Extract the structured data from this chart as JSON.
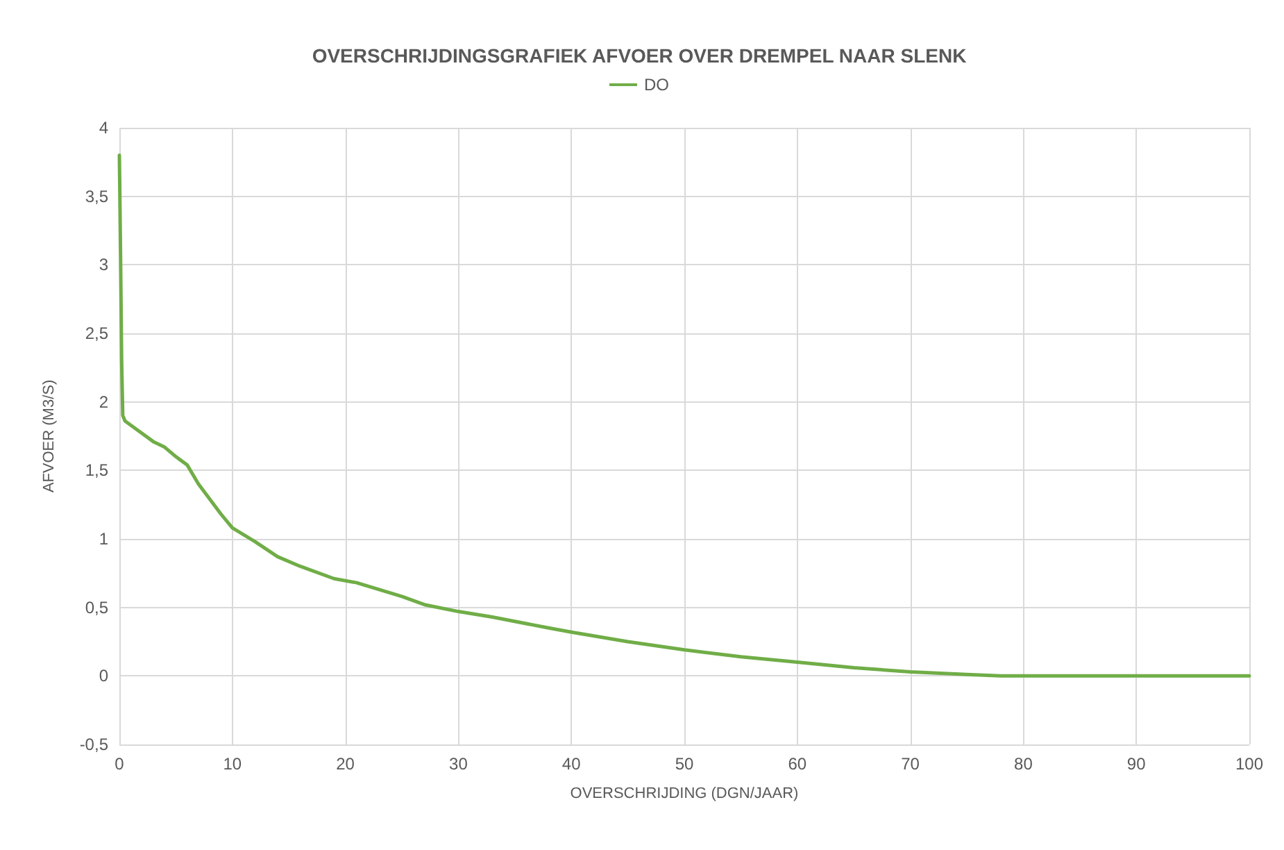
{
  "chart_data": {
    "type": "line",
    "title": "OVERSCHRIJDINGSGRAFIEK AFVOER OVER DREMPEL NAAR SLENK",
    "xlabel": "OVERSCHRIJDING (DGN/JAAR)",
    "ylabel": "AFVOER (M3/S)",
    "x": [
      0,
      0.1,
      0.2,
      0.3,
      0.5,
      2,
      3,
      4,
      5,
      6,
      7,
      9,
      10,
      12,
      14,
      16,
      19,
      21,
      25,
      27,
      30,
      33,
      38,
      40,
      45,
      50,
      55,
      60,
      65,
      70,
      75,
      78,
      100
    ],
    "series": [
      {
        "name": "DO",
        "color": "#70ad47",
        "values": [
          3.8,
          3.1,
          2.3,
          1.9,
          1.86,
          1.77,
          1.71,
          1.67,
          1.6,
          1.54,
          1.4,
          1.18,
          1.08,
          0.98,
          0.87,
          0.8,
          0.71,
          0.68,
          0.58,
          0.52,
          0.47,
          0.43,
          0.35,
          0.32,
          0.25,
          0.19,
          0.14,
          0.1,
          0.06,
          0.03,
          0.01,
          0,
          0
        ]
      }
    ],
    "xlim": [
      0,
      100
    ],
    "xticks": [
      0,
      10,
      20,
      30,
      40,
      50,
      60,
      70,
      80,
      90,
      100
    ],
    "ylim": [
      -0.5,
      4
    ],
    "yticks": [
      {
        "value": -0.5,
        "label": "-0,5"
      },
      0,
      {
        "value": 0.5,
        "label": "0,5"
      },
      1,
      {
        "value": 1.5,
        "label": "1,5"
      },
      2,
      {
        "value": 2.5,
        "label": "2,5"
      },
      3,
      {
        "value": 3.5,
        "label": "3,5"
      },
      4
    ],
    "grid": true,
    "legend": "top",
    "marker": "none",
    "line_style": "solid"
  }
}
